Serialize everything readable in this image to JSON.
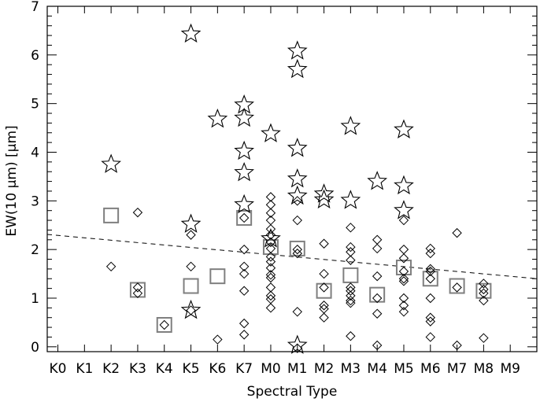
{
  "chart_data": {
    "type": "scatter",
    "title": "",
    "xlabel": "Spectral Type",
    "ylabel": "EW(10 μm) [μm]",
    "categories": [
      "K0",
      "K1",
      "K2",
      "K3",
      "K4",
      "K5",
      "K6",
      "K7",
      "M0",
      "M1",
      "M2",
      "M3",
      "M4",
      "M5",
      "M6",
      "M7",
      "M8",
      "M9"
    ],
    "xlim": [
      -0.4,
      18.0
    ],
    "ylim": [
      -0.1,
      7.0
    ],
    "yticks": [
      0,
      1,
      2,
      3,
      4,
      5,
      6,
      7
    ],
    "grid": false,
    "legend": "none",
    "series": [
      {
        "marker": "star",
        "color": "#000000",
        "points": [
          [
            2,
            3.75
          ],
          [
            5,
            6.43
          ],
          [
            5,
            2.52
          ],
          [
            5,
            0.75
          ],
          [
            6,
            4.68
          ],
          [
            7,
            4.97
          ],
          [
            7,
            4.7
          ],
          [
            7,
            4.02
          ],
          [
            7,
            3.58
          ],
          [
            7,
            2.92
          ],
          [
            8,
            4.38
          ],
          [
            8,
            2.22
          ],
          [
            9,
            6.08
          ],
          [
            9,
            5.7
          ],
          [
            9,
            4.08
          ],
          [
            9,
            3.45
          ],
          [
            9,
            3.1
          ],
          [
            9,
            0.03
          ],
          [
            10,
            3.14
          ],
          [
            10,
            3.02
          ],
          [
            11,
            4.53
          ],
          [
            11,
            3.01
          ],
          [
            12,
            3.4
          ],
          [
            13,
            4.46
          ],
          [
            13,
            3.31
          ],
          [
            13,
            2.8
          ]
        ]
      },
      {
        "marker": "diamond",
        "color": "#000000",
        "points": [
          [
            2,
            1.65
          ],
          [
            3,
            2.76
          ],
          [
            3,
            1.22
          ],
          [
            3,
            1.1
          ],
          [
            4,
            0.45
          ],
          [
            5,
            2.3
          ],
          [
            5,
            1.65
          ],
          [
            5,
            0.75
          ],
          [
            6,
            0.15
          ],
          [
            7,
            2.65
          ],
          [
            7,
            2.0
          ],
          [
            7,
            1.65
          ],
          [
            7,
            1.5
          ],
          [
            7,
            1.15
          ],
          [
            7,
            0.48
          ],
          [
            7,
            0.25
          ],
          [
            8,
            3.08
          ],
          [
            8,
            2.92
          ],
          [
            8,
            2.75
          ],
          [
            8,
            2.6
          ],
          [
            8,
            2.42
          ],
          [
            8,
            2.3
          ],
          [
            8,
            2.15
          ],
          [
            8,
            2.02
          ],
          [
            8,
            1.85
          ],
          [
            8,
            1.75
          ],
          [
            8,
            1.62
          ],
          [
            8,
            1.48
          ],
          [
            8,
            1.42
          ],
          [
            8,
            1.22
          ],
          [
            8,
            1.05
          ],
          [
            8,
            0.98
          ],
          [
            8,
            0.8
          ],
          [
            9,
            3.0
          ],
          [
            9,
            2.6
          ],
          [
            9,
            2.0
          ],
          [
            9,
            1.92
          ],
          [
            9,
            0.72
          ],
          [
            9,
            -0.03
          ],
          [
            10,
            2.12
          ],
          [
            10,
            1.5
          ],
          [
            10,
            1.22
          ],
          [
            10,
            0.85
          ],
          [
            10,
            0.78
          ],
          [
            10,
            0.6
          ],
          [
            11,
            2.45
          ],
          [
            11,
            2.05
          ],
          [
            11,
            1.95
          ],
          [
            11,
            1.78
          ],
          [
            11,
            1.22
          ],
          [
            11,
            1.15
          ],
          [
            11,
            1.05
          ],
          [
            11,
            0.95
          ],
          [
            11,
            0.9
          ],
          [
            11,
            0.22
          ],
          [
            12,
            2.2
          ],
          [
            12,
            2.02
          ],
          [
            12,
            1.45
          ],
          [
            12,
            1.0
          ],
          [
            12,
            0.68
          ],
          [
            12,
            0.03
          ],
          [
            13,
            2.6
          ],
          [
            13,
            2.0
          ],
          [
            13,
            1.82
          ],
          [
            13,
            1.55
          ],
          [
            13,
            1.4
          ],
          [
            13,
            1.35
          ],
          [
            13,
            1.0
          ],
          [
            13,
            0.85
          ],
          [
            13,
            0.72
          ],
          [
            14,
            2.02
          ],
          [
            14,
            1.92
          ],
          [
            14,
            1.6
          ],
          [
            14,
            1.55
          ],
          [
            14,
            1.4
          ],
          [
            14,
            1.0
          ],
          [
            14,
            0.6
          ],
          [
            14,
            0.52
          ],
          [
            14,
            0.2
          ],
          [
            15,
            2.34
          ],
          [
            15,
            1.22
          ],
          [
            15,
            0.03
          ],
          [
            16,
            1.3
          ],
          [
            16,
            1.18
          ],
          [
            16,
            1.1
          ],
          [
            16,
            0.95
          ],
          [
            16,
            0.18
          ]
        ]
      },
      {
        "marker": "square",
        "color": "#7f7f7f",
        "points": [
          [
            2,
            2.7
          ],
          [
            3,
            1.17
          ],
          [
            4,
            0.45
          ],
          [
            5,
            1.25
          ],
          [
            6,
            1.45
          ],
          [
            7,
            2.65
          ],
          [
            8,
            2.05
          ],
          [
            9,
            2.02
          ],
          [
            10,
            1.15
          ],
          [
            11,
            1.47
          ],
          [
            12,
            1.07
          ],
          [
            13,
            1.63
          ],
          [
            14,
            1.4
          ],
          [
            15,
            1.25
          ],
          [
            16,
            1.15
          ]
        ]
      }
    ],
    "trend_line": {
      "style": "dashed",
      "x": [
        -0.4,
        18.0
      ],
      "y": [
        2.31,
        1.4
      ]
    }
  }
}
